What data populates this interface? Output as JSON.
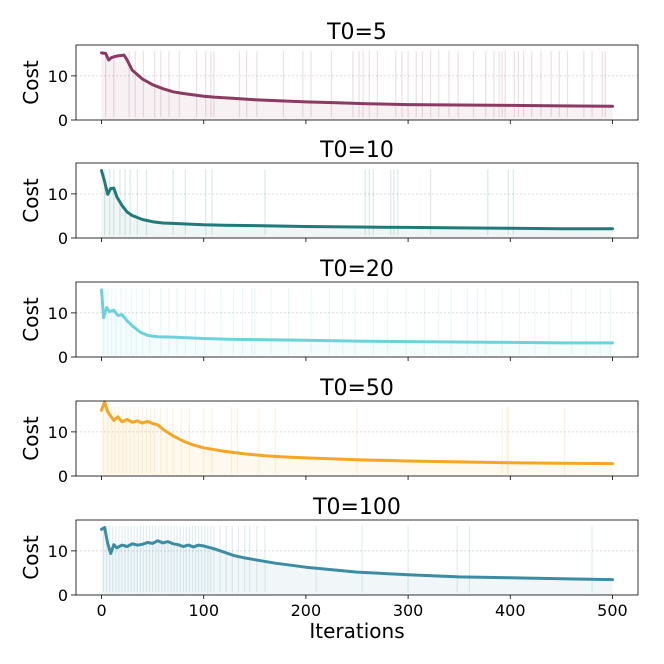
{
  "chart_data": {
    "type": "line",
    "xlabel": "Iterations",
    "ylabel": "Cost",
    "xlim": [
      -25,
      525
    ],
    "ylim": [
      0,
      17
    ],
    "xticks": [
      0,
      100,
      200,
      300,
      400,
      500
    ],
    "yticks": [
      0,
      10
    ],
    "grid": "horizontal",
    "panels": [
      {
        "title": "T0=5",
        "color": "#8B3A62",
        "best_cost": [
          [
            0,
            15.2
          ],
          [
            4,
            15.1
          ],
          [
            7,
            13.6
          ],
          [
            10,
            14.2
          ],
          [
            15,
            14.5
          ],
          [
            22,
            14.7
          ],
          [
            25,
            13.6
          ],
          [
            30,
            11.3
          ],
          [
            40,
            9.3
          ],
          [
            50,
            8.0
          ],
          [
            60,
            7.1
          ],
          [
            70,
            6.4
          ],
          [
            80,
            6.0
          ],
          [
            90,
            5.7
          ],
          [
            100,
            5.4
          ],
          [
            110,
            5.2
          ],
          [
            130,
            4.9
          ],
          [
            150,
            4.6
          ],
          [
            170,
            4.4
          ],
          [
            200,
            4.1
          ],
          [
            230,
            3.9
          ],
          [
            260,
            3.7
          ],
          [
            300,
            3.5
          ],
          [
            350,
            3.4
          ],
          [
            400,
            3.3
          ],
          [
            450,
            3.2
          ],
          [
            500,
            3.1
          ]
        ],
        "spikes": [
          4,
          12,
          27,
          33,
          41,
          52,
          58,
          66,
          76,
          93,
          102,
          107,
          110,
          135,
          142,
          152,
          178,
          197,
          205,
          225,
          246,
          252,
          256,
          262,
          270,
          288,
          294,
          300,
          308,
          314,
          322,
          330,
          340,
          349,
          364,
          376,
          384,
          389,
          392,
          395,
          404,
          408,
          413,
          421,
          430,
          440,
          448,
          456,
          472,
          480,
          490,
          493
        ]
      },
      {
        "title": "T0=10",
        "color": "#1F7A78",
        "best_cost": [
          [
            0,
            15.3
          ],
          [
            3,
            12.8
          ],
          [
            6,
            9.9
          ],
          [
            9,
            11.2
          ],
          [
            12,
            11.3
          ],
          [
            15,
            9.3
          ],
          [
            20,
            7.4
          ],
          [
            25,
            5.9
          ],
          [
            30,
            5.1
          ],
          [
            40,
            4.2
          ],
          [
            50,
            3.7
          ],
          [
            60,
            3.4
          ],
          [
            70,
            3.3
          ],
          [
            80,
            3.2
          ],
          [
            100,
            3.0
          ],
          [
            120,
            2.9
          ],
          [
            150,
            2.8
          ],
          [
            200,
            2.6
          ],
          [
            250,
            2.5
          ],
          [
            300,
            2.4
          ],
          [
            350,
            2.3
          ],
          [
            400,
            2.2
          ],
          [
            450,
            2.1
          ],
          [
            500,
            2.1
          ]
        ],
        "spikes": [
          3,
          8,
          12,
          18,
          23,
          28,
          35,
          44,
          70,
          82,
          102,
          108,
          160,
          258,
          262,
          266,
          283,
          286,
          290,
          322,
          378,
          398,
          403
        ]
      },
      {
        "title": "T0=20",
        "color": "#6DD3DB",
        "best_cost": [
          [
            0,
            15.2
          ],
          [
            2,
            8.9
          ],
          [
            5,
            11.2
          ],
          [
            8,
            10.3
          ],
          [
            12,
            10.6
          ],
          [
            16,
            9.4
          ],
          [
            20,
            9.6
          ],
          [
            25,
            8.2
          ],
          [
            30,
            7.1
          ],
          [
            38,
            5.6
          ],
          [
            45,
            4.9
          ],
          [
            55,
            4.6
          ],
          [
            70,
            4.5
          ],
          [
            80,
            4.4
          ],
          [
            90,
            4.3
          ],
          [
            100,
            4.2
          ],
          [
            130,
            4.0
          ],
          [
            160,
            3.9
          ],
          [
            200,
            3.8
          ],
          [
            250,
            3.6
          ],
          [
            300,
            3.5
          ],
          [
            350,
            3.4
          ],
          [
            400,
            3.3
          ],
          [
            450,
            3.2
          ],
          [
            500,
            3.2
          ]
        ],
        "spikes": [
          2,
          6,
          10,
          14,
          19,
          24,
          29,
          34,
          40,
          47,
          58,
          66,
          74,
          82,
          92,
          101,
          117,
          129,
          138,
          147,
          150,
          166,
          183,
          205,
          223,
          236,
          248,
          266,
          280,
          298,
          316,
          330,
          342,
          358,
          368,
          376,
          392,
          409,
          424,
          438,
          460,
          474,
          488,
          498
        ]
      },
      {
        "title": "T0=50",
        "color": "#F5A623",
        "best_cost": [
          [
            0,
            14.9
          ],
          [
            3,
            16.8
          ],
          [
            6,
            14.6
          ],
          [
            9,
            13.6
          ],
          [
            12,
            12.6
          ],
          [
            16,
            13.4
          ],
          [
            20,
            12.3
          ],
          [
            25,
            12.8
          ],
          [
            30,
            12.2
          ],
          [
            35,
            12.5
          ],
          [
            40,
            12.0
          ],
          [
            45,
            12.4
          ],
          [
            50,
            11.9
          ],
          [
            55,
            11.6
          ],
          [
            60,
            10.6
          ],
          [
            70,
            9.1
          ],
          [
            80,
            7.9
          ],
          [
            90,
            7.0
          ],
          [
            100,
            6.4
          ],
          [
            120,
            5.6
          ],
          [
            140,
            5.0
          ],
          [
            160,
            4.6
          ],
          [
            180,
            4.3
          ],
          [
            200,
            4.1
          ],
          [
            250,
            3.7
          ],
          [
            300,
            3.4
          ],
          [
            350,
            3.2
          ],
          [
            400,
            3.0
          ],
          [
            450,
            2.9
          ],
          [
            500,
            2.8
          ]
        ],
        "spikes": [
          2,
          6,
          10,
          13,
          17,
          21,
          24,
          28,
          32,
          36,
          40,
          44,
          48,
          52,
          58,
          64,
          70,
          78,
          86,
          100,
          108,
          127,
          133,
          154,
          170,
          250,
          392,
          397,
          398,
          453
        ]
      },
      {
        "title": "T0=100",
        "color": "#3C8DA3",
        "best_cost": [
          [
            0,
            14.9
          ],
          [
            3,
            15.3
          ],
          [
            6,
            11.7
          ],
          [
            9,
            9.4
          ],
          [
            12,
            11.4
          ],
          [
            15,
            10.7
          ],
          [
            20,
            11.3
          ],
          [
            25,
            11.0
          ],
          [
            30,
            11.6
          ],
          [
            35,
            11.3
          ],
          [
            40,
            11.5
          ],
          [
            45,
            11.9
          ],
          [
            50,
            11.7
          ],
          [
            55,
            12.3
          ],
          [
            60,
            11.8
          ],
          [
            65,
            12.1
          ],
          [
            70,
            11.6
          ],
          [
            75,
            11.4
          ],
          [
            80,
            11.0
          ],
          [
            85,
            11.3
          ],
          [
            90,
            10.9
          ],
          [
            95,
            11.3
          ],
          [
            100,
            11.1
          ],
          [
            110,
            10.5
          ],
          [
            120,
            9.7
          ],
          [
            130,
            8.9
          ],
          [
            140,
            8.4
          ],
          [
            150,
            8.0
          ],
          [
            170,
            7.2
          ],
          [
            200,
            6.3
          ],
          [
            250,
            5.2
          ],
          [
            300,
            4.6
          ],
          [
            350,
            4.1
          ],
          [
            400,
            3.9
          ],
          [
            450,
            3.7
          ],
          [
            500,
            3.5
          ]
        ],
        "spikes": [
          2,
          5,
          8,
          11,
          14,
          17,
          20,
          23,
          26,
          29,
          32,
          35,
          38,
          41,
          44,
          47,
          50,
          53,
          56,
          59,
          62,
          65,
          68,
          71,
          74,
          77,
          80,
          83,
          86,
          89,
          92,
          95,
          98,
          101,
          104,
          107,
          110,
          116,
          122,
          128,
          134,
          140,
          145,
          152,
          160,
          210,
          255,
          300,
          348,
          360,
          480
        ]
      }
    ]
  }
}
